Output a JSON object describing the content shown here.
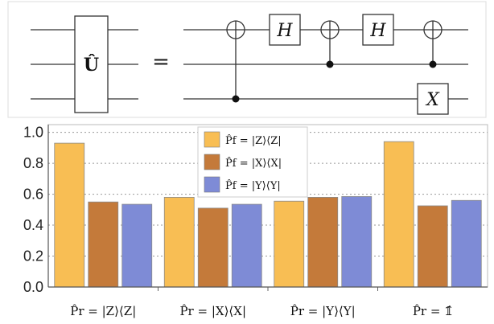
{
  "circuit": {
    "unitary_label": "Û",
    "equals": "=",
    "hadamard_label": "H",
    "x_label": "X"
  },
  "colors": {
    "Z": "#F8BE54",
    "X": "#C47A3A",
    "Y": "#7E8BD6"
  },
  "chart_data": {
    "type": "bar",
    "categories": [
      "P̂r = |Z⟩⟨Z|",
      "P̂r = |X⟩⟨X|",
      "P̂r = |Y⟩⟨Y|",
      "P̂r = 𝟙̂"
    ],
    "series": [
      {
        "name": "P̂f = |Z⟩⟨Z|",
        "color": "#F8BE54",
        "values": [
          0.93,
          0.58,
          0.555,
          0.94
        ]
      },
      {
        "name": "P̂f = |X⟩⟨X|",
        "color": "#C47A3A",
        "values": [
          0.55,
          0.51,
          0.58,
          0.525
        ]
      },
      {
        "name": "P̂f = |Y⟩⟨Y|",
        "color": "#7E8BD6",
        "values": [
          0.535,
          0.535,
          0.585,
          0.56
        ]
      }
    ],
    "yticks": [
      "0.0",
      "0.2",
      "0.4",
      "0.6",
      "0.8",
      "1.0"
    ],
    "ylim": [
      0,
      1.05
    ],
    "grid": "horizontal dotted",
    "legend_position": "top-center"
  }
}
